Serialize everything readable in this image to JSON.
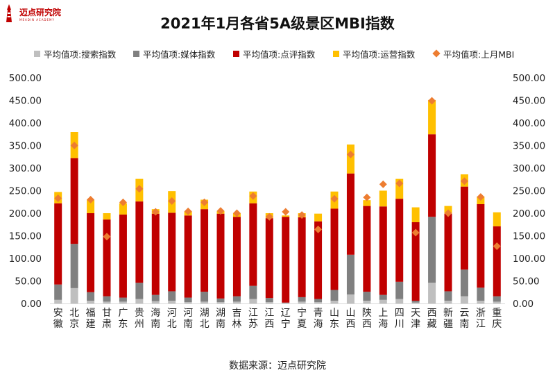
{
  "brand": {
    "name": "迈点研究院",
    "tagline": "MEADIN ACADEMY"
  },
  "title": "2021年1月各省5A级景区MBI指数",
  "source": "数据来源：迈点研究院",
  "colors": {
    "search": "#bfbfbf",
    "media": "#808080",
    "review": "#c00000",
    "ops": "#ffc000",
    "last": "#ed7d31",
    "brand": "#c00000"
  },
  "chart_data": {
    "type": "bar",
    "stacked": true,
    "title": "2021年1月各省5A级景区MBI指数",
    "xlabel": "",
    "ylabel": "",
    "ylim": [
      0,
      500
    ],
    "yticks": [
      "0.00",
      "50.00",
      "100.00",
      "150.00",
      "200.00",
      "250.00",
      "300.00",
      "350.00",
      "400.00",
      "450.00",
      "500.00"
    ],
    "right_axis_ticks": [
      "0.00",
      "50.00",
      "100.00",
      "150.00",
      "200.00",
      "250.00",
      "300.00",
      "350.00",
      "400.00",
      "450.00",
      "500.00"
    ],
    "grid": false,
    "legend_position": "top",
    "categories": [
      "安徽",
      "北京",
      "福建",
      "甘肃",
      "广东",
      "贵州",
      "海南",
      "河北",
      "河南",
      "湖北",
      "湖南",
      "吉林",
      "江苏",
      "江西",
      "辽宁",
      "宁夏",
      "青海",
      "山东",
      "山西",
      "陕西",
      "上海",
      "四川",
      "天津",
      "西藏",
      "新疆",
      "云南",
      "浙江",
      "重庆"
    ],
    "series": [
      {
        "name": "平均值项:搜索指数",
        "kind": "bar",
        "color_key": "search",
        "values": [
          8,
          34,
          6,
          4,
          4,
          10,
          5,
          6,
          3,
          4,
          3,
          4,
          10,
          3,
          1,
          4,
          3,
          6,
          20,
          6,
          8,
          10,
          2,
          46,
          6,
          16,
          6,
          4
        ]
      },
      {
        "name": "平均值项:媒体指数",
        "kind": "bar",
        "color_key": "media",
        "values": [
          34,
          98,
          19,
          12,
          9,
          36,
          14,
          21,
          10,
          22,
          8,
          12,
          29,
          9,
          1,
          10,
          7,
          24,
          88,
          20,
          11,
          38,
          4,
          146,
          21,
          59,
          29,
          12
        ]
      },
      {
        "name": "平均值项:点评指数",
        "kind": "bar",
        "color_key": "review",
        "values": [
          180,
          190,
          175,
          170,
          184,
          180,
          180,
          174,
          182,
          183,
          188,
          176,
          183,
          177,
          190,
          177,
          172,
          180,
          180,
          190,
          196,
          184,
          174,
          183,
          172,
          184,
          185,
          155
        ]
      },
      {
        "name": "平均值项:运营指数",
        "kind": "bar",
        "color_key": "ops",
        "values": [
          25,
          58,
          30,
          14,
          25,
          50,
          10,
          48,
          9,
          21,
          6,
          8,
          26,
          11,
          3,
          9,
          17,
          38,
          64,
          13,
          35,
          44,
          33,
          76,
          17,
          27,
          17,
          31
        ]
      },
      {
        "name": "平均值项:上月MBI",
        "kind": "marker",
        "color_key": "last",
        "values": [
          233,
          350,
          230,
          148,
          224,
          254,
          203,
          227,
          204,
          224,
          205,
          200,
          238,
          192,
          203,
          196,
          164,
          232,
          330,
          235,
          264,
          266,
          157,
          449,
          200,
          271,
          236,
          127
        ]
      }
    ]
  }
}
